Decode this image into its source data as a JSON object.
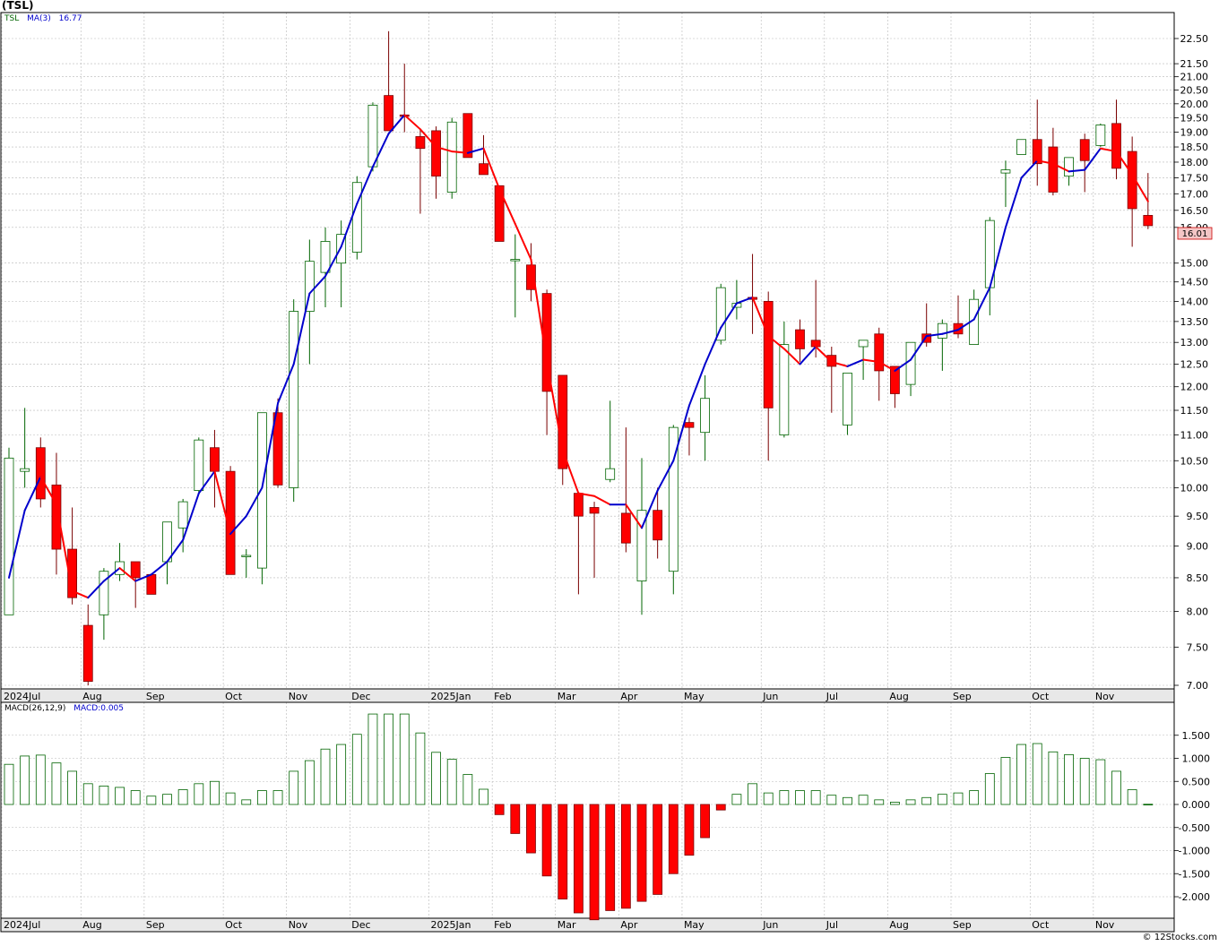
{
  "header": {
    "title": "(TSL)"
  },
  "legend": {
    "symbol": "TSL",
    "ma_label": "MA(3)",
    "ma_value": "16.77",
    "macd_label": "MACD(26,12,9)",
    "macd_value": "MACD:0.005"
  },
  "footer": {
    "credit": "© 12Stocks.com"
  },
  "colors": {
    "up": "#006400",
    "down": "#ff0000",
    "ma_up": "#0000cc",
    "ma_down": "#ff0000",
    "last_price_bg": "#f4c6c6"
  },
  "chart_data": [
    {
      "type": "candlestick",
      "price_axis_ticks": [
        "22.50",
        "21.50",
        "21.00",
        "20.50",
        "20.00",
        "19.50",
        "19.00",
        "18.50",
        "18.00",
        "17.50",
        "17.00",
        "16.50",
        "16.00",
        "15.00",
        "14.50",
        "14.00",
        "13.50",
        "13.00",
        "12.50",
        "12.00",
        "11.50",
        "11.00",
        "10.50",
        "10.00",
        "9.50",
        "9.00",
        "8.50",
        "8.00",
        "7.50",
        "7.00"
      ],
      "last_price": "16.01",
      "x_ticks": [
        {
          "label": "2024Jul",
          "week": 0
        },
        {
          "label": "Aug",
          "week": 5
        },
        {
          "label": "Sep",
          "week": 9
        },
        {
          "label": "Oct",
          "week": 14
        },
        {
          "label": "Nov",
          "week": 18
        },
        {
          "label": "Dec",
          "week": 22
        },
        {
          "label": "2025Jan",
          "week": 27
        },
        {
          "label": "Feb",
          "week": 31
        },
        {
          "label": "Mar",
          "week": 35
        },
        {
          "label": "Apr",
          "week": 39
        },
        {
          "label": "May",
          "week": 43
        },
        {
          "label": "Jun",
          "week": 48
        },
        {
          "label": "Jul",
          "week": 52
        },
        {
          "label": "Aug",
          "week": 56
        },
        {
          "label": "Sep",
          "week": 60
        },
        {
          "label": "Oct",
          "week": 65
        },
        {
          "label": "Nov",
          "week": 69
        }
      ],
      "ohlc": [
        [
          7.95,
          10.75,
          7.95,
          10.55
        ],
        [
          10.3,
          11.55,
          10.0,
          10.35
        ],
        [
          10.75,
          10.95,
          9.65,
          9.8
        ],
        [
          10.05,
          10.65,
          8.55,
          8.95
        ],
        [
          8.95,
          9.65,
          8.1,
          8.2
        ],
        [
          7.8,
          8.1,
          7.0,
          7.05
        ],
        [
          7.95,
          8.65,
          7.6,
          8.6
        ],
        [
          8.55,
          9.05,
          8.45,
          8.75
        ],
        [
          8.75,
          8.75,
          8.05,
          8.5
        ],
        [
          8.55,
          8.55,
          8.25,
          8.25
        ],
        [
          8.75,
          9.4,
          8.4,
          9.4
        ],
        [
          9.3,
          9.8,
          8.9,
          9.75
        ],
        [
          9.95,
          10.95,
          9.9,
          10.9
        ],
        [
          10.75,
          11.1,
          9.65,
          10.3
        ],
        [
          10.3,
          10.4,
          8.55,
          8.55
        ],
        [
          8.85,
          8.95,
          8.5,
          8.85
        ],
        [
          8.65,
          11.45,
          8.4,
          11.45
        ],
        [
          11.45,
          11.75,
          10.0,
          10.05
        ],
        [
          10.0,
          14.05,
          9.75,
          13.75
        ],
        [
          13.75,
          15.65,
          12.5,
          15.05
        ],
        [
          14.75,
          16.0,
          13.85,
          15.6
        ],
        [
          15.0,
          16.2,
          13.85,
          15.8
        ],
        [
          15.3,
          17.55,
          15.1,
          17.35
        ],
        [
          17.85,
          20.05,
          17.7,
          19.95
        ],
        [
          20.3,
          22.8,
          19.05,
          19.05
        ],
        [
          19.6,
          21.5,
          19.0,
          19.55
        ],
        [
          18.85,
          19.1,
          16.4,
          18.45
        ],
        [
          19.05,
          19.2,
          16.85,
          17.55
        ],
        [
          17.05,
          19.5,
          16.85,
          19.35
        ],
        [
          19.65,
          19.65,
          18.15,
          18.15
        ],
        [
          17.95,
          18.9,
          17.6,
          17.6
        ],
        [
          17.25,
          17.25,
          15.6,
          15.6
        ],
        [
          15.1,
          15.8,
          13.6,
          15.1
        ],
        [
          14.95,
          15.55,
          14.0,
          14.3
        ],
        [
          14.2,
          14.3,
          11.0,
          11.9
        ],
        [
          12.25,
          12.25,
          10.05,
          10.35
        ],
        [
          9.9,
          9.9,
          8.25,
          9.5
        ],
        [
          9.65,
          9.75,
          8.5,
          9.55
        ],
        [
          10.15,
          11.7,
          10.1,
          10.35
        ],
        [
          9.55,
          11.15,
          8.9,
          9.05
        ],
        [
          8.45,
          10.55,
          7.95,
          9.6
        ],
        [
          9.6,
          10.0,
          8.8,
          9.1
        ],
        [
          8.6,
          11.2,
          8.25,
          11.15
        ],
        [
          11.25,
          11.35,
          10.6,
          11.15
        ],
        [
          11.05,
          12.25,
          10.5,
          11.75
        ],
        [
          13.05,
          14.45,
          12.95,
          14.35
        ],
        [
          13.85,
          14.55,
          13.55,
          13.95
        ],
        [
          14.1,
          15.25,
          13.2,
          14.05
        ],
        [
          14.0,
          14.25,
          10.5,
          11.55
        ],
        [
          11.0,
          13.5,
          10.95,
          12.95
        ],
        [
          13.3,
          13.55,
          12.55,
          12.85
        ],
        [
          13.05,
          14.55,
          12.65,
          12.9
        ],
        [
          12.7,
          12.9,
          11.45,
          12.45
        ],
        [
          11.2,
          12.3,
          11.0,
          12.3
        ],
        [
          12.9,
          13.05,
          12.15,
          13.05
        ],
        [
          13.2,
          13.35,
          11.7,
          12.35
        ],
        [
          12.45,
          12.45,
          11.55,
          11.85
        ],
        [
          12.05,
          13.0,
          11.8,
          13.0
        ],
        [
          13.2,
          13.95,
          12.9,
          13.0
        ],
        [
          13.1,
          13.55,
          12.35,
          13.45
        ],
        [
          13.45,
          14.15,
          13.1,
          13.2
        ],
        [
          12.95,
          14.3,
          12.95,
          14.05
        ],
        [
          14.35,
          16.3,
          13.65,
          16.2
        ],
        [
          17.65,
          18.05,
          16.6,
          17.75
        ],
        [
          18.25,
          18.75,
          18.25,
          18.75
        ],
        [
          18.75,
          20.15,
          17.25,
          17.95
        ],
        [
          18.5,
          19.15,
          16.95,
          17.05
        ],
        [
          17.55,
          18.15,
          17.25,
          18.15
        ],
        [
          18.75,
          18.95,
          17.05,
          18.05
        ],
        [
          18.55,
          19.3,
          18.5,
          19.25
        ],
        [
          19.3,
          20.15,
          17.45,
          17.8
        ],
        [
          18.35,
          18.85,
          15.45,
          16.55
        ],
        [
          16.35,
          17.65,
          15.95,
          16.05
        ]
      ],
      "ma3": [
        8.5,
        9.6,
        10.2,
        9.7,
        8.3,
        8.2,
        8.45,
        8.65,
        8.45,
        8.55,
        8.75,
        9.1,
        9.9,
        10.3,
        9.2,
        9.5,
        10.0,
        11.65,
        12.5,
        14.2,
        14.65,
        15.45,
        16.7,
        17.85,
        18.95,
        19.6,
        19.1,
        18.5,
        18.35,
        18.3,
        18.45,
        17.15,
        16.1,
        15.1,
        12.55,
        10.7,
        9.9,
        9.85,
        9.7,
        9.7,
        9.3,
        9.95,
        10.5,
        11.6,
        12.5,
        13.35,
        13.95,
        14.1,
        13.15,
        12.85,
        12.5,
        12.9,
        12.55,
        12.45,
        12.6,
        12.55,
        12.35,
        12.6,
        13.15,
        13.2,
        13.3,
        13.55,
        14.35,
        16.0,
        17.5,
        18.05,
        17.95,
        17.7,
        17.75,
        18.45,
        18.35,
        17.6,
        16.77
      ]
    },
    {
      "type": "bar",
      "name": "MACD(26,12,9)",
      "macd_axis_ticks": [
        "1.500",
        "1.000",
        "0.500",
        "0.000",
        "-0.500",
        "-1.000",
        "-1.500",
        "-2.000"
      ],
      "values": [
        0.87,
        1.05,
        1.07,
        0.9,
        0.72,
        0.45,
        0.4,
        0.37,
        0.3,
        0.18,
        0.22,
        0.32,
        0.45,
        0.5,
        0.25,
        0.1,
        0.3,
        0.3,
        0.72,
        0.95,
        1.2,
        1.3,
        1.52,
        1.96,
        1.96,
        1.96,
        1.55,
        1.13,
        0.98,
        0.65,
        0.33,
        -0.22,
        -0.63,
        -1.05,
        -1.55,
        -2.05,
        -2.35,
        -2.5,
        -2.3,
        -2.25,
        -2.1,
        -1.95,
        -1.5,
        -1.1,
        -0.72,
        -0.12,
        0.22,
        0.45,
        0.25,
        0.3,
        0.3,
        0.3,
        0.2,
        0.15,
        0.2,
        0.1,
        0.05,
        0.1,
        0.15,
        0.22,
        0.25,
        0.3,
        0.67,
        1.02,
        1.3,
        1.32,
        1.14,
        1.08,
        1.0,
        0.97,
        0.72,
        0.32,
        0.005
      ]
    }
  ]
}
